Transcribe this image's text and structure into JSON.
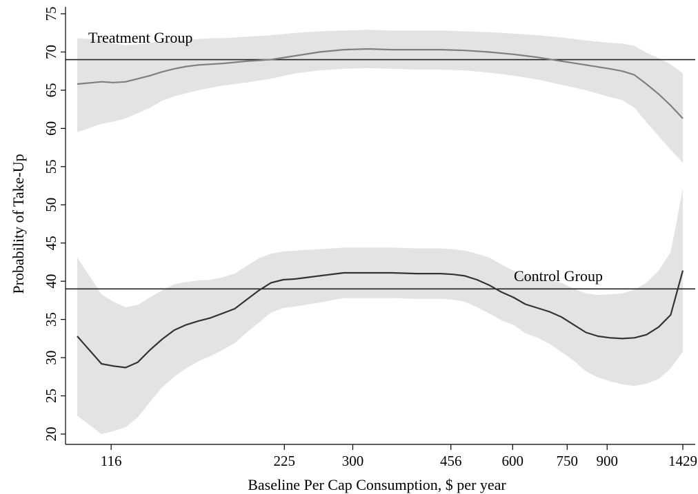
{
  "chart_data": {
    "type": "line",
    "title": "",
    "xlabel": "Baseline Per Cap Consumption, $ per year",
    "ylabel": "Probability of Take-Up",
    "ylim": [
      20,
      75
    ],
    "yticks": [
      20,
      25,
      30,
      35,
      40,
      45,
      50,
      55,
      60,
      65,
      70,
      75
    ],
    "xticks": [
      {
        "value": 116,
        "label": "116",
        "pos": 0.056
      },
      {
        "value": 225,
        "label": "225",
        "pos": 0.342
      },
      {
        "value": 300,
        "label": "300",
        "pos": 0.455
      },
      {
        "value": 456,
        "label": "456",
        "pos": 0.617
      },
      {
        "value": 600,
        "label": "600",
        "pos": 0.719
      },
      {
        "value": 750,
        "label": "750",
        "pos": 0.809
      },
      {
        "value": 900,
        "label": "900",
        "pos": 0.875
      },
      {
        "value": 1429,
        "label": "1429",
        "pos": 1.0
      }
    ],
    "x_domain_pos": [
      0.0,
      1.0
    ],
    "grid": false,
    "reference_lines": [
      {
        "series": "Treatment Group",
        "y": 69
      },
      {
        "series": "Control Group",
        "y": 39
      }
    ],
    "series": [
      {
        "name": "Treatment Group",
        "color": "#7f7f7f",
        "x_pos": [
          0.0,
          0.04,
          0.06,
          0.08,
          0.1,
          0.12,
          0.14,
          0.16,
          0.18,
          0.2,
          0.22,
          0.24,
          0.28,
          0.32,
          0.36,
          0.4,
          0.44,
          0.48,
          0.52,
          0.56,
          0.6,
          0.64,
          0.68,
          0.72,
          0.76,
          0.8,
          0.84,
          0.88,
          0.9,
          0.92,
          0.94,
          0.96,
          0.98,
          1.0
        ],
        "y": [
          65.8,
          66.1,
          66.0,
          66.1,
          66.5,
          66.9,
          67.4,
          67.8,
          68.1,
          68.3,
          68.4,
          68.5,
          68.8,
          69.0,
          69.5,
          70.0,
          70.3,
          70.4,
          70.3,
          70.3,
          70.3,
          70.2,
          70.0,
          69.7,
          69.3,
          68.8,
          68.3,
          67.8,
          67.5,
          67.0,
          65.8,
          64.5,
          63.0,
          61.3
        ],
        "upper": [
          71.8,
          71.6,
          71.1,
          70.9,
          71.0,
          71.2,
          71.4,
          71.5,
          71.6,
          71.7,
          71.8,
          71.8,
          72.0,
          72.2,
          72.5,
          72.7,
          72.8,
          72.9,
          72.8,
          72.8,
          72.8,
          72.7,
          72.6,
          72.4,
          72.2,
          71.9,
          71.5,
          71.2,
          71.1,
          70.8,
          69.9,
          69.2,
          68.4,
          67.2
        ],
        "lower": [
          59.5,
          60.6,
          60.9,
          61.3,
          62.0,
          62.7,
          63.6,
          64.2,
          64.6,
          65.0,
          65.3,
          65.6,
          66.0,
          66.5,
          67.2,
          67.6,
          67.8,
          67.9,
          67.8,
          67.7,
          67.7,
          67.6,
          67.3,
          66.9,
          66.4,
          65.7,
          65.0,
          64.1,
          63.7,
          62.7,
          60.8,
          59.0,
          57.2,
          55.5
        ]
      },
      {
        "name": "Control Group",
        "color": "#333333",
        "x_pos": [
          0.0,
          0.04,
          0.06,
          0.08,
          0.1,
          0.12,
          0.14,
          0.16,
          0.18,
          0.2,
          0.22,
          0.24,
          0.26,
          0.28,
          0.3,
          0.32,
          0.34,
          0.36,
          0.4,
          0.44,
          0.48,
          0.52,
          0.56,
          0.6,
          0.62,
          0.64,
          0.66,
          0.68,
          0.7,
          0.72,
          0.74,
          0.76,
          0.78,
          0.8,
          0.82,
          0.84,
          0.86,
          0.88,
          0.9,
          0.92,
          0.94,
          0.96,
          0.98,
          1.0
        ],
        "y": [
          32.8,
          29.2,
          28.9,
          28.7,
          29.4,
          31.0,
          32.4,
          33.6,
          34.3,
          34.8,
          35.2,
          35.8,
          36.4,
          37.6,
          38.8,
          39.8,
          40.2,
          40.3,
          40.7,
          41.1,
          41.1,
          41.1,
          41.0,
          41.0,
          40.9,
          40.7,
          40.2,
          39.5,
          38.6,
          37.9,
          37.0,
          36.5,
          36.0,
          35.3,
          34.3,
          33.3,
          32.8,
          32.6,
          32.5,
          32.6,
          33.0,
          34.0,
          35.6,
          41.4
        ],
        "upper": [
          43.1,
          38.3,
          37.3,
          36.6,
          36.9,
          37.9,
          38.8,
          39.6,
          39.9,
          40.1,
          40.2,
          40.5,
          41.0,
          42.0,
          43.0,
          43.6,
          43.9,
          44.0,
          44.2,
          44.4,
          44.4,
          44.4,
          44.3,
          44.3,
          44.2,
          44.0,
          43.6,
          43.1,
          42.2,
          41.4,
          40.8,
          40.4,
          40.1,
          39.8,
          39.0,
          38.4,
          38.2,
          38.3,
          38.4,
          38.9,
          39.8,
          41.4,
          43.8,
          52.1
        ],
        "lower": [
          22.4,
          20.0,
          20.4,
          20.9,
          22.2,
          24.2,
          26.1,
          27.5,
          28.6,
          29.5,
          30.2,
          31.0,
          31.9,
          33.3,
          34.6,
          35.9,
          36.5,
          36.7,
          37.2,
          37.8,
          37.8,
          37.8,
          37.7,
          37.7,
          37.6,
          37.3,
          36.6,
          35.8,
          34.9,
          34.3,
          33.2,
          32.6,
          31.8,
          30.7,
          29.6,
          28.2,
          27.4,
          26.9,
          26.5,
          26.3,
          26.6,
          27.2,
          28.6,
          30.8
        ]
      }
    ]
  }
}
